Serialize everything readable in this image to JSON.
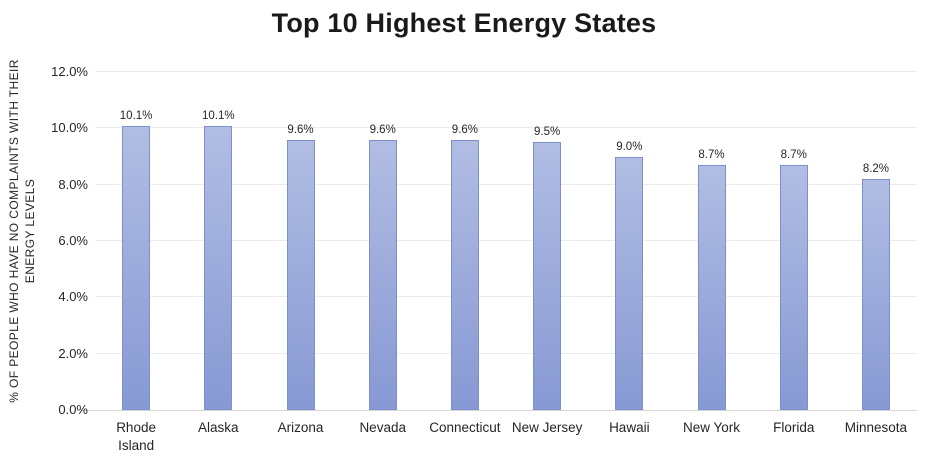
{
  "page": {
    "title": "Top 10 Highest Energy States"
  },
  "chart_data": {
    "type": "bar",
    "title": "Top 10 Highest Energy States",
    "categories": [
      "Rhode Island",
      "Alaska",
      "Arizona",
      "Nevada",
      "Connecticut",
      "New Jersey",
      "Hawaii",
      "New York",
      "Florida",
      "Minnesota"
    ],
    "values": [
      10.1,
      10.1,
      9.6,
      9.6,
      9.6,
      9.5,
      9.0,
      8.7,
      8.7,
      8.2
    ],
    "data_labels": [
      "10.1%",
      "10.1%",
      "9.6%",
      "9.6%",
      "9.6%",
      "9.5%",
      "9.0%",
      "8.7%",
      "8.7%",
      "8.2%"
    ],
    "xlabel": "",
    "ylabel": "% OF PEOPLE WHO HAVE NO COMPLAINTS WITH THEIR ENERGY LEVELS",
    "ylabel_lines": [
      "% OF PEOPLE WHO HAVE NO COMPLAINTS WITH THEIR",
      "ENERGY LEVELS"
    ],
    "ylim": [
      0,
      12
    ],
    "ytick_step": 2,
    "ytick_labels": [
      "0.0%",
      "2.0%",
      "4.0%",
      "6.0%",
      "8.0%",
      "10.0%",
      "12.0%"
    ],
    "grid": true,
    "legend": false,
    "colors": {
      "bar_top": "#b1bde3",
      "bar_bottom": "#8799d4",
      "bar_border": "#7d90cc",
      "gridline": "#ebebeb",
      "axis_line": "#d6d6d6",
      "text": "#262626",
      "title_text": "#1a1a1a"
    }
  }
}
